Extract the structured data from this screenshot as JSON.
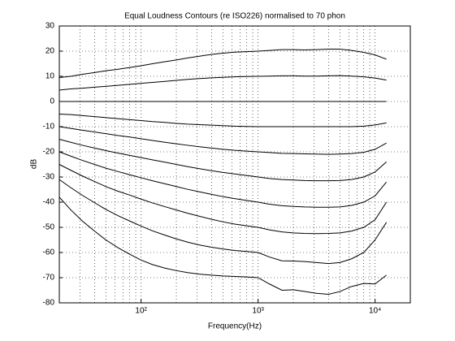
{
  "chart_data": {
    "type": "line",
    "title": "Equal Loudness Contours (re ISO226) normalised to 70 phon",
    "x_label": "Frequency(Hz)",
    "y_label": "dB",
    "x": [
      20,
      25,
      31.5,
      40,
      50,
      63,
      80,
      100,
      125,
      160,
      200,
      250,
      315,
      400,
      500,
      630,
      800,
      1000,
      1250,
      1600,
      2000,
      2500,
      3150,
      4000,
      5000,
      6300,
      8000,
      10000,
      12500
    ],
    "xscale": "log",
    "xlim": [
      20,
      20000
    ],
    "xticks": [
      {
        "value": 100,
        "label": "10²"
      },
      {
        "value": 1000,
        "label": "10³"
      },
      {
        "value": 10000,
        "label": "10⁴"
      }
    ],
    "xminorticks": [
      20,
      30,
      40,
      50,
      60,
      70,
      80,
      90,
      200,
      300,
      400,
      500,
      600,
      700,
      800,
      900,
      2000,
      3000,
      4000,
      5000,
      6000,
      7000,
      8000,
      9000,
      20000
    ],
    "ylim": [
      -80,
      30
    ],
    "yticks": [
      -80,
      -70,
      -60,
      -50,
      -40,
      -30,
      -20,
      -10,
      0,
      10,
      20,
      30
    ],
    "grid": true,
    "series": [
      {
        "color": "#000000",
        "values": [
          9.5,
          10,
          10.8,
          11.5,
          12.2,
          12.8,
          13.5,
          14.2,
          15,
          15.8,
          16.5,
          17.3,
          18,
          18.7,
          19.2,
          19.6,
          19.8,
          20,
          20.3,
          20.6,
          20.6,
          20.5,
          20.6,
          20.8,
          20.8,
          20.3,
          19.5,
          18.5,
          16.8
        ]
      },
      {
        "color": "#000000",
        "values": [
          4.5,
          5,
          5.3,
          5.7,
          6,
          6.4,
          6.8,
          7.2,
          7.6,
          8,
          8.4,
          8.8,
          9.1,
          9.4,
          9.6,
          9.8,
          9.9,
          10,
          10.1,
          10.2,
          10.2,
          10.1,
          10.1,
          10.2,
          10.3,
          10.1,
          9.8,
          9.3,
          8.5
        ]
      },
      {
        "color": "#000000",
        "values": [
          0,
          0,
          0,
          0,
          0,
          0,
          0,
          0,
          0,
          0,
          0,
          0,
          0,
          0,
          0,
          0,
          0,
          0,
          0,
          0,
          0,
          0,
          0,
          0,
          0,
          0,
          0,
          0,
          0
        ]
      },
      {
        "color": "#000000",
        "values": [
          -5,
          -5.2,
          -5.6,
          -6,
          -6.4,
          -6.8,
          -7.2,
          -7.6,
          -8,
          -8.3,
          -8.7,
          -9,
          -9.2,
          -9.4,
          -9.6,
          -9.8,
          -9.9,
          -10,
          -10,
          -10,
          -10,
          -10,
          -10,
          -10,
          -10,
          -10,
          -9.8,
          -9.3,
          -8.5
        ]
      },
      {
        "color": "#000000",
        "values": [
          -10,
          -10.7,
          -11.4,
          -12.1,
          -12.8,
          -13.5,
          -14.1,
          -14.8,
          -15.5,
          -16.2,
          -16.8,
          -17.4,
          -18,
          -18.5,
          -19,
          -19.4,
          -19.7,
          -20,
          -20.3,
          -20.6,
          -20.7,
          -20.8,
          -20.9,
          -21,
          -20.9,
          -20.7,
          -20.2,
          -19,
          -16.5
        ]
      },
      {
        "color": "#000000",
        "values": [
          -15,
          -16.2,
          -17.4,
          -18.5,
          -19.5,
          -20.5,
          -21.4,
          -22.3,
          -23.2,
          -24.1,
          -25,
          -25.9,
          -26.7,
          -27.5,
          -28.2,
          -28.8,
          -29.4,
          -30,
          -30.6,
          -31,
          -31.2,
          -31.4,
          -31.5,
          -31.5,
          -31.4,
          -31,
          -30,
          -28,
          -24
        ]
      },
      {
        "color": "#000000",
        "values": [
          -20,
          -21.7,
          -23.4,
          -25,
          -26.5,
          -27.8,
          -29.1,
          -30.3,
          -31.5,
          -32.7,
          -33.8,
          -34.9,
          -35.9,
          -36.9,
          -37.8,
          -38.6,
          -39.3,
          -40,
          -40.8,
          -41.4,
          -41.7,
          -41.9,
          -42,
          -42,
          -41.9,
          -41.3,
          -40,
          -37.5,
          -32
        ]
      },
      {
        "color": "#000000",
        "values": [
          -25,
          -27.3,
          -29.6,
          -31.8,
          -33.8,
          -35.6,
          -37.2,
          -38.8,
          -40.3,
          -41.8,
          -43.1,
          -44.4,
          -45.6,
          -46.8,
          -47.8,
          -48.7,
          -49.4,
          -50,
          -51,
          -51.8,
          -52.2,
          -52.4,
          -52.5,
          -52.4,
          -52.2,
          -51.5,
          -50,
          -47,
          -40
        ]
      },
      {
        "color": "#000000",
        "values": [
          -31,
          -34.2,
          -37.3,
          -40.2,
          -42.9,
          -45.3,
          -47.5,
          -49.5,
          -51.4,
          -53.1,
          -54.6,
          -55.9,
          -57,
          -57.9,
          -58.6,
          -59.2,
          -59.6,
          -60,
          -61.8,
          -63.3,
          -63.4,
          -63.6,
          -64,
          -64.4,
          -64,
          -62.5,
          -60,
          -55,
          -48
        ]
      },
      {
        "color": "#000000",
        "values": [
          -38,
          -43,
          -47.5,
          -51.5,
          -55,
          -58,
          -60.7,
          -63,
          -64.8,
          -66.2,
          -67.2,
          -68,
          -68.6,
          -69,
          -69.3,
          -69.5,
          -69.7,
          -70,
          -72.5,
          -75,
          -74.8,
          -75.5,
          -76.2,
          -76.6,
          -75.5,
          -73.5,
          -72.3,
          -72.5,
          -69
        ]
      }
    ]
  }
}
